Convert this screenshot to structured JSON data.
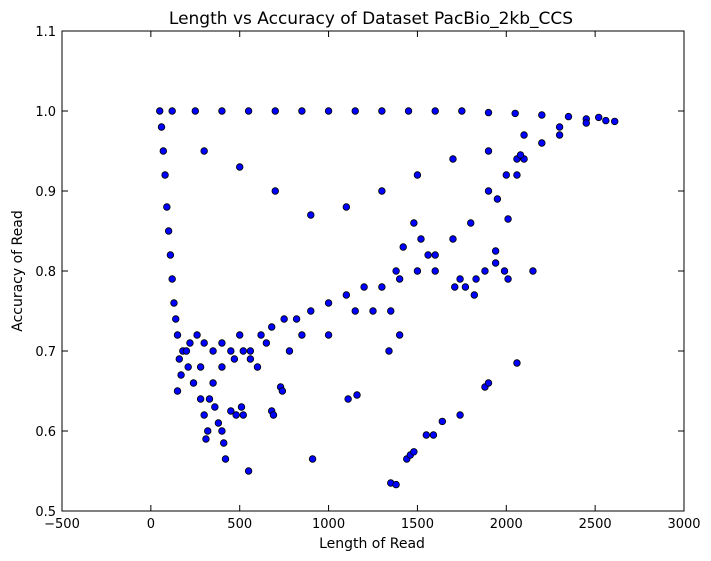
{
  "chart_data": {
    "type": "scatter",
    "title": "Length vs Accuracy of Dataset PacBio_2kb_CCS",
    "xlabel": "Length of Read",
    "ylabel": "Accuracy of Read",
    "xlim": [
      -500,
      3000
    ],
    "ylim": [
      0.5,
      1.1
    ],
    "xticks": [
      -500,
      0,
      500,
      1000,
      1500,
      2000,
      2500,
      3000
    ],
    "xtick_labels": [
      "−500",
      "0",
      "500",
      "1000",
      "1500",
      "2000",
      "2500",
      "3000"
    ],
    "yticks": [
      0.5,
      0.6,
      0.7,
      0.8,
      0.9,
      1.0,
      1.1
    ],
    "ytick_labels": [
      "0.5",
      "0.6",
      "0.7",
      "0.8",
      "0.9",
      "1.0",
      "1.1"
    ],
    "grid": false,
    "marker_color": "#0000ff",
    "marker_edge_color": "#000000",
    "series": [
      {
        "points": [
          [
            50,
            1.0
          ],
          [
            120,
            1.0
          ],
          [
            250,
            1.0
          ],
          [
            400,
            1.0
          ],
          [
            550,
            1.0
          ],
          [
            700,
            1.0
          ],
          [
            850,
            1.0
          ],
          [
            1000,
            1.0
          ],
          [
            1150,
            1.0
          ],
          [
            1300,
            1.0
          ],
          [
            1450,
            1.0
          ],
          [
            1600,
            1.0
          ],
          [
            1750,
            1.0
          ],
          [
            1900,
            0.998
          ],
          [
            2050,
            0.997
          ],
          [
            2200,
            0.995
          ],
          [
            2350,
            0.993
          ],
          [
            2450,
            0.99
          ],
          [
            2520,
            0.992
          ],
          [
            2560,
            0.988
          ],
          [
            2610,
            0.987
          ],
          [
            60,
            0.98
          ],
          [
            70,
            0.95
          ],
          [
            80,
            0.92
          ],
          [
            90,
            0.88
          ],
          [
            100,
            0.85
          ],
          [
            110,
            0.82
          ],
          [
            120,
            0.79
          ],
          [
            130,
            0.76
          ],
          [
            140,
            0.74
          ],
          [
            150,
            0.72
          ],
          [
            180,
            0.7
          ],
          [
            160,
            0.69
          ],
          [
            200,
            0.7
          ],
          [
            220,
            0.71
          ],
          [
            260,
            0.72
          ],
          [
            300,
            0.71
          ],
          [
            350,
            0.7
          ],
          [
            400,
            0.71
          ],
          [
            450,
            0.7
          ],
          [
            500,
            0.72
          ],
          [
            560,
            0.7
          ],
          [
            620,
            0.72
          ],
          [
            680,
            0.73
          ],
          [
            750,
            0.74
          ],
          [
            820,
            0.74
          ],
          [
            900,
            0.75
          ],
          [
            1000,
            0.76
          ],
          [
            1100,
            0.77
          ],
          [
            1200,
            0.78
          ],
          [
            1300,
            0.78
          ],
          [
            1400,
            0.79
          ],
          [
            1500,
            0.8
          ],
          [
            1600,
            0.82
          ],
          [
            1700,
            0.84
          ],
          [
            1800,
            0.86
          ],
          [
            1900,
            0.9
          ],
          [
            2000,
            0.92
          ],
          [
            2100,
            0.94
          ],
          [
            2200,
            0.96
          ],
          [
            2300,
            0.97
          ],
          [
            300,
            0.95
          ],
          [
            500,
            0.93
          ],
          [
            700,
            0.9
          ],
          [
            900,
            0.87
          ],
          [
            1100,
            0.88
          ],
          [
            1300,
            0.9
          ],
          [
            1500,
            0.92
          ],
          [
            1700,
            0.94
          ],
          [
            1900,
            0.95
          ],
          [
            2100,
            0.97
          ],
          [
            2300,
            0.98
          ],
          [
            2450,
            0.985
          ],
          [
            1830,
            0.79
          ],
          [
            1880,
            0.8
          ],
          [
            1940,
            0.81
          ],
          [
            1990,
            0.8
          ],
          [
            2010,
            0.79
          ],
          [
            2150,
            0.8
          ],
          [
            1940,
            0.825
          ],
          [
            2010,
            0.865
          ],
          [
            1950,
            0.89
          ],
          [
            2060,
            0.92
          ],
          [
            2060,
            0.94
          ],
          [
            2080,
            0.945
          ],
          [
            1710,
            0.78
          ],
          [
            1740,
            0.79
          ],
          [
            1600,
            0.8
          ],
          [
            1560,
            0.82
          ],
          [
            1520,
            0.84
          ],
          [
            1480,
            0.86
          ],
          [
            1420,
            0.83
          ],
          [
            1380,
            0.8
          ],
          [
            1350,
            0.75
          ],
          [
            1820,
            0.77
          ],
          [
            1770,
            0.78
          ],
          [
            150,
            0.65
          ],
          [
            170,
            0.67
          ],
          [
            210,
            0.68
          ],
          [
            240,
            0.66
          ],
          [
            280,
            0.64
          ],
          [
            300,
            0.62
          ],
          [
            320,
            0.6
          ],
          [
            310,
            0.59
          ],
          [
            360,
            0.63
          ],
          [
            380,
            0.61
          ],
          [
            330,
            0.64
          ],
          [
            400,
            0.6
          ],
          [
            410,
            0.585
          ],
          [
            420,
            0.565
          ],
          [
            450,
            0.625
          ],
          [
            480,
            0.62
          ],
          [
            510,
            0.63
          ],
          [
            520,
            0.62
          ],
          [
            550,
            0.55
          ],
          [
            560,
            0.69
          ],
          [
            600,
            0.68
          ],
          [
            680,
            0.625
          ],
          [
            690,
            0.62
          ],
          [
            730,
            0.655
          ],
          [
            740,
            0.65
          ],
          [
            910,
            0.565
          ],
          [
            1110,
            0.64
          ],
          [
            1160,
            0.645
          ],
          [
            1340,
            0.7
          ],
          [
            1350,
            0.535
          ],
          [
            1380,
            0.533
          ],
          [
            1440,
            0.565
          ],
          [
            1460,
            0.57
          ],
          [
            1480,
            0.574
          ],
          [
            1550,
            0.595
          ],
          [
            1590,
            0.595
          ],
          [
            1640,
            0.612
          ],
          [
            1740,
            0.62
          ],
          [
            1880,
            0.655
          ],
          [
            1900,
            0.66
          ],
          [
            2060,
            0.685
          ],
          [
            280,
            0.68
          ],
          [
            350,
            0.66
          ],
          [
            400,
            0.68
          ],
          [
            470,
            0.69
          ],
          [
            520,
            0.7
          ],
          [
            650,
            0.71
          ],
          [
            780,
            0.7
          ],
          [
            850,
            0.72
          ],
          [
            1000,
            0.72
          ],
          [
            1150,
            0.75
          ],
          [
            1250,
            0.75
          ],
          [
            1400,
            0.72
          ]
        ]
      }
    ]
  }
}
